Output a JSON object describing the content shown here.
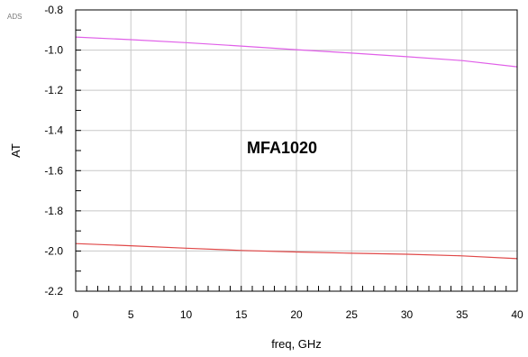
{
  "logo": "ADS",
  "chart_data": {
    "type": "line",
    "xlabel": "freq, GHz",
    "ylabel": "AT",
    "xlim": [
      0,
      40
    ],
    "ylim": [
      -2.2,
      -0.8
    ],
    "xticks": [
      0,
      5,
      10,
      15,
      20,
      25,
      30,
      35,
      40
    ],
    "yticks": [
      -2.2,
      -2.0,
      -1.8,
      -1.6,
      -1.4,
      -1.2,
      -1.0,
      -0.8
    ],
    "xtick_labels": [
      "0",
      "5",
      "10",
      "15",
      "20",
      "25",
      "30",
      "35",
      "40"
    ],
    "ytick_labels": [
      "-2.2",
      "-2.0",
      "-1.8",
      "-1.6",
      "-1.4",
      "-1.2",
      "-1.0",
      "-0.8"
    ],
    "grid": true,
    "annotation": "MFA1020",
    "x": [
      0,
      5,
      10,
      15,
      20,
      25,
      30,
      35,
      40
    ],
    "series": [
      {
        "color": "#e060e8",
        "values": [
          -0.935,
          -0.948,
          -0.963,
          -0.98,
          -0.998,
          -1.015,
          -1.033,
          -1.052,
          -1.083
        ]
      },
      {
        "color": "#e04848",
        "values": [
          -1.963,
          -1.974,
          -1.986,
          -1.997,
          -2.005,
          -2.011,
          -2.016,
          -2.024,
          -2.038
        ]
      }
    ]
  }
}
